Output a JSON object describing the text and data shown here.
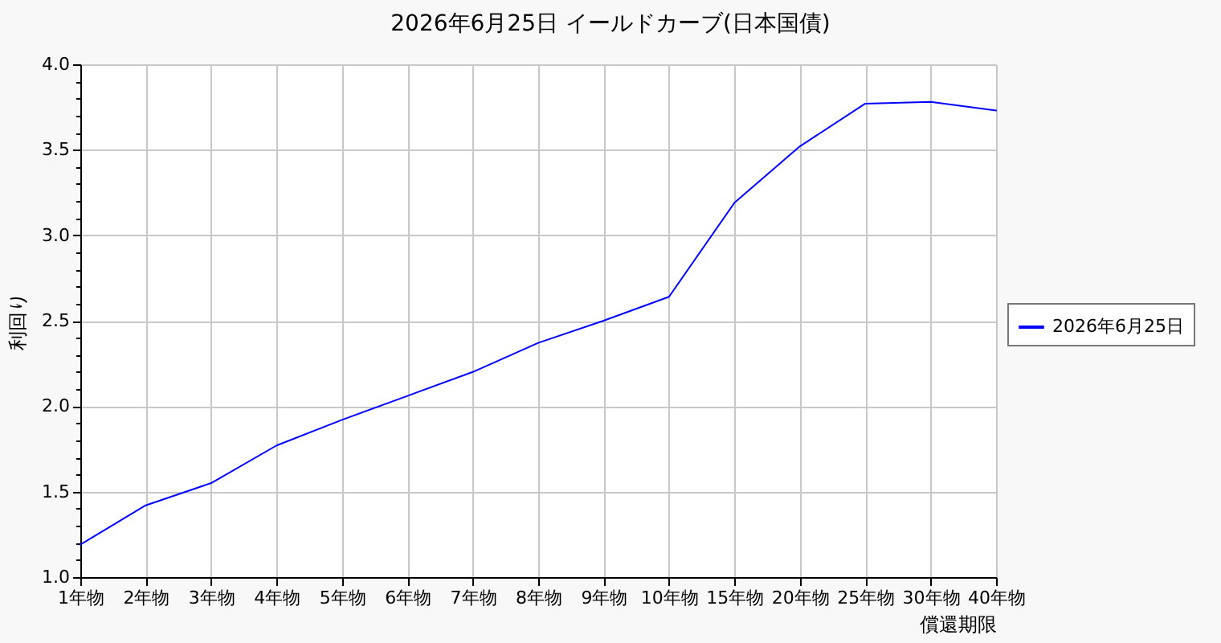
{
  "chart_data": {
    "type": "line",
    "title": "2026年6月25日 イールドカーブ(日本国債)",
    "xlabel": "償還期限",
    "ylabel": "利回り",
    "categories": [
      "1年物",
      "2年物",
      "3年物",
      "4年物",
      "5年物",
      "6年物",
      "7年物",
      "8年物",
      "9年物",
      "10年物",
      "15年物",
      "20年物",
      "25年物",
      "30年物",
      "40年物"
    ],
    "series": [
      {
        "name": "2026年6月25日",
        "color": "#0000ff",
        "values": [
          1.19,
          1.42,
          1.55,
          1.77,
          1.92,
          2.06,
          2.2,
          2.37,
          2.5,
          2.64,
          3.19,
          3.52,
          3.77,
          3.78,
          3.73
        ]
      }
    ],
    "ylim": [
      1,
      4
    ],
    "yticks": [
      {
        "value": 1,
        "label": "1.0"
      },
      {
        "value": 1.1,
        "label": null
      },
      {
        "value": 1.2,
        "label": null
      },
      {
        "value": 1.3,
        "label": null
      },
      {
        "value": 1.4,
        "label": null
      },
      1.5,
      {
        "value": 1.6,
        "label": null
      },
      {
        "value": 1.7,
        "label": null
      },
      {
        "value": 1.8,
        "label": null
      },
      {
        "value": 1.9,
        "label": null
      },
      {
        "value": 2,
        "label": "2.0"
      },
      {
        "value": 2.1,
        "label": null
      },
      {
        "value": 2.2,
        "label": null
      },
      {
        "value": 2.3,
        "label": null
      },
      {
        "value": 2.4,
        "label": null
      },
      2.5,
      {
        "value": 2.6,
        "label": null
      },
      {
        "value": 2.7,
        "label": null
      },
      {
        "value": 2.8,
        "label": null
      },
      {
        "value": 2.9,
        "label": null
      },
      {
        "value": 3,
        "label": "3.0"
      },
      {
        "value": 3.1,
        "label": null
      },
      {
        "value": 3.2,
        "label": null
      },
      {
        "value": 3.3,
        "label": null
      },
      {
        "value": 3.4,
        "label": null
      },
      3.5,
      {
        "value": 3.6,
        "label": null
      },
      {
        "value": 3.7,
        "label": null
      },
      {
        "value": 3.8,
        "label": null
      },
      {
        "value": 3.9,
        "label": null
      },
      {
        "value": 4,
        "label": "4.0"
      }
    ],
    "grid": true,
    "legend": "right"
  }
}
